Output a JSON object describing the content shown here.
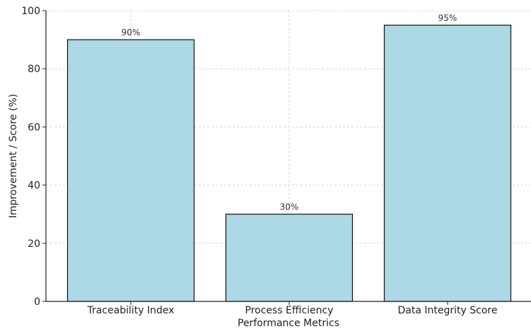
{
  "chart_data": {
    "type": "bar",
    "title": "",
    "xlabel": "Performance Metrics",
    "ylabel": "Improvement / Score (%)",
    "categories": [
      "Traceability Index",
      "Process Efficiency",
      "Data Integrity Score"
    ],
    "values": [
      90,
      30,
      95
    ],
    "data_labels": [
      "90%",
      "30%",
      "95%"
    ],
    "ylim": [
      0,
      100
    ],
    "yticks": [
      0,
      20,
      40,
      60,
      80,
      100
    ],
    "grid": true,
    "colors": {
      "bar_fill": "#add8e6",
      "bar_edge": "#111111",
      "grid": "#cccccc"
    }
  }
}
